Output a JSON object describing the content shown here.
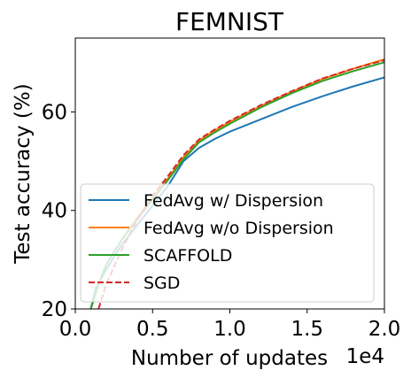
{
  "chart_data": {
    "type": "line",
    "title": "FEMNIST",
    "xlabel": "Number of updates",
    "ylabel": "Test accuracy (%)",
    "x_offset_label": "1e4",
    "xlim": [
      0.0,
      2.0
    ],
    "ylim": [
      20,
      75
    ],
    "xticks": [
      0.0,
      0.5,
      1.0,
      1.5,
      2.0
    ],
    "xtick_labels": [
      "0.0",
      "0.5",
      "1.0",
      "1.5",
      "2.0"
    ],
    "yticks": [
      20,
      40,
      60
    ],
    "ytick_labels": [
      "20",
      "40",
      "60"
    ],
    "grid": false,
    "legend_position": "lower-right",
    "series": [
      {
        "name": "FedAvg w/ Dispersion",
        "color": "#1f77b4",
        "dash": "solid",
        "x": [
          0.1,
          0.13,
          0.2,
          0.3,
          0.4,
          0.5,
          0.6,
          0.7,
          0.8,
          0.9,
          1.0,
          1.2,
          1.4,
          1.6,
          1.8,
          2.0
        ],
        "y": [
          20,
          24,
          28,
          33,
          37,
          41,
          45,
          50,
          52.7,
          54.5,
          56,
          58.5,
          61,
          63.2,
          65.2,
          67
        ]
      },
      {
        "name": "FedAvg w/o Dispersion",
        "color": "#ff7f0e",
        "dash": "solid",
        "x": [
          0.1,
          0.15,
          0.2,
          0.3,
          0.4,
          0.5,
          0.6,
          0.7,
          0.8,
          0.9,
          1.0,
          1.2,
          1.4,
          1.6,
          1.8,
          2.0
        ],
        "y": [
          20,
          25,
          29,
          34,
          38.5,
          42.5,
          46.5,
          50.8,
          54.2,
          56.2,
          58,
          61.2,
          64.1,
          66.7,
          68.8,
          70.7
        ]
      },
      {
        "name": "SCAFFOLD",
        "color": "#2ca02c",
        "dash": "solid",
        "x": [
          0.1,
          0.15,
          0.2,
          0.3,
          0.4,
          0.5,
          0.6,
          0.7,
          0.8,
          0.9,
          1.0,
          1.2,
          1.4,
          1.6,
          1.8,
          2.0
        ],
        "y": [
          20,
          25,
          29,
          34,
          38.2,
          42.2,
          46.2,
          50.4,
          53.8,
          55.8,
          57.6,
          60.9,
          63.8,
          66.3,
          68.3,
          70.1
        ]
      },
      {
        "name": "SGD",
        "color": "#d62728",
        "dash": "dashed",
        "x": [
          0.15,
          0.2,
          0.3,
          0.4,
          0.5,
          0.6,
          0.7,
          0.8,
          0.9,
          1.0,
          1.2,
          1.4,
          1.6,
          1.8,
          2.0
        ],
        "y": [
          20,
          25,
          32,
          38,
          43,
          47,
          51.2,
          54.4,
          56.4,
          58.2,
          61.4,
          64.2,
          66.8,
          68.8,
          70.5
        ]
      }
    ]
  }
}
